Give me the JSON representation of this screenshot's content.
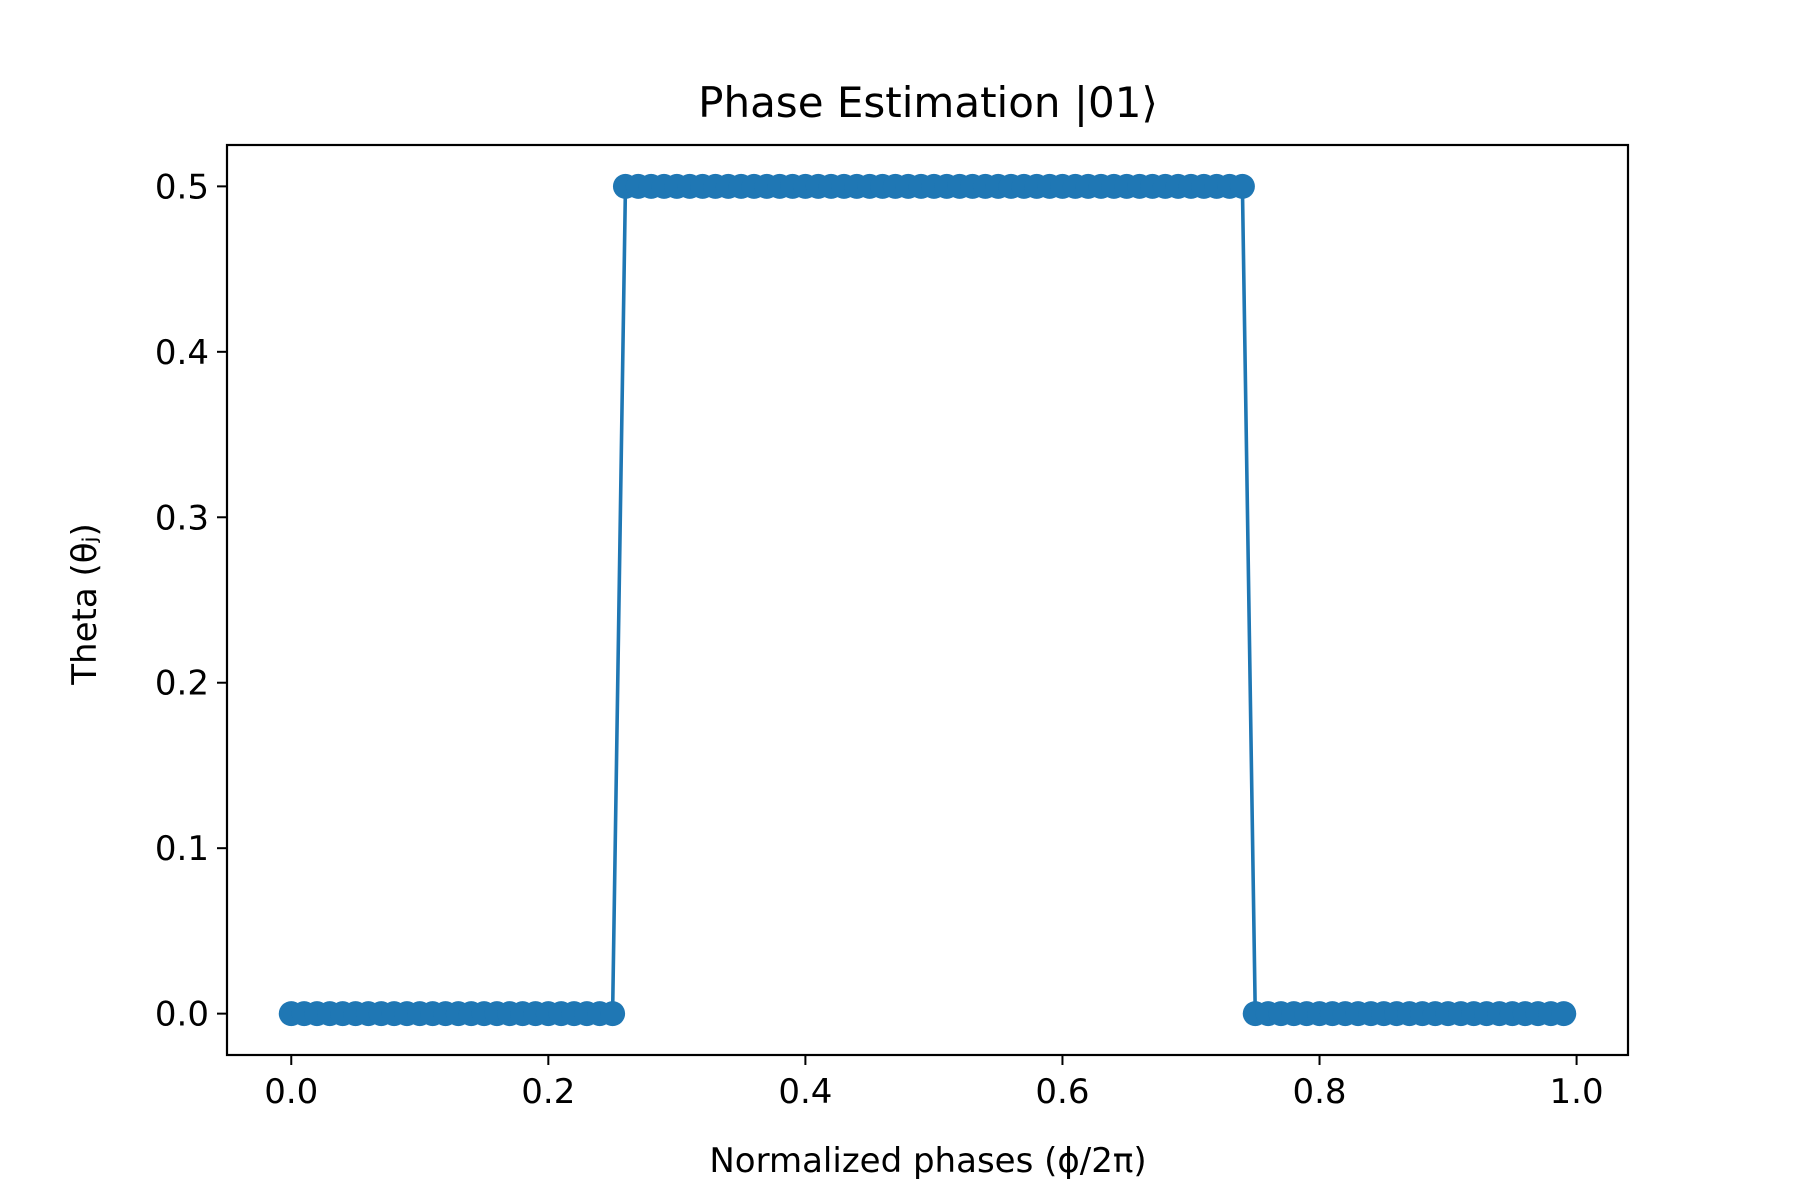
{
  "chart_data": {
    "type": "line",
    "title": "Phase Estimation |01⟩",
    "xlabel": "Normalized phases (ϕ/2π)",
    "ylabel": "Theta (θⱼ)",
    "xlim": [
      -0.05,
      1.04
    ],
    "ylim": [
      -0.025,
      0.525
    ],
    "xticks": [
      0.0,
      0.2,
      0.4,
      0.6,
      0.8,
      1.0
    ],
    "xtick_labels": [
      "0.0",
      "0.2",
      "0.4",
      "0.6",
      "0.8",
      "1.0"
    ],
    "yticks": [
      0.0,
      0.1,
      0.2,
      0.3,
      0.4,
      0.5
    ],
    "ytick_labels": [
      "0.0",
      "0.1",
      "0.2",
      "0.3",
      "0.4",
      "0.5"
    ],
    "grid": false,
    "series": [
      {
        "color": "#1f77b4",
        "marker": "circle",
        "x_start": 0.0,
        "x_step": 0.01,
        "x_end": 0.99,
        "segments": [
          {
            "x_from": 0.0,
            "x_to": 0.25,
            "y": 0.0
          },
          {
            "x_from": 0.26,
            "x_to": 0.74,
            "y": 0.5
          },
          {
            "x_from": 0.75,
            "x_to": 0.99,
            "y": 0.0
          }
        ]
      }
    ]
  }
}
